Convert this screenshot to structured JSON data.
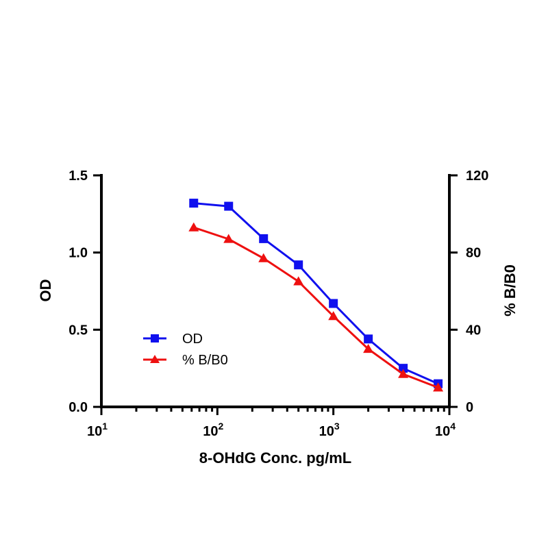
{
  "chart_data": {
    "type": "line",
    "x_scale": "log",
    "xlabel": "8-OHdG Conc. pg/mL",
    "xlim": [
      10,
      10000
    ],
    "x_ticks": [
      10,
      100,
      1000,
      10000
    ],
    "x_tick_labels": [
      {
        "base": "10",
        "exp": "1"
      },
      {
        "base": "10",
        "exp": "2"
      },
      {
        "base": "10",
        "exp": "3"
      },
      {
        "base": "10",
        "exp": "4"
      }
    ],
    "y_left": {
      "label": "OD",
      "lim": [
        0,
        1.5
      ],
      "ticks": [
        0,
        0.5,
        1.0,
        1.5
      ],
      "tick_labels": [
        "0.0",
        "0.5",
        "1.0",
        "1.5"
      ]
    },
    "y_right": {
      "label": "% B/B0",
      "lim": [
        0,
        120
      ],
      "ticks": [
        0,
        40,
        80,
        120
      ],
      "tick_labels": [
        "0",
        "40",
        "80",
        "120"
      ]
    },
    "x": [
      62.5,
      125,
      250,
      500,
      1000,
      2000,
      4000,
      8000
    ],
    "series": [
      {
        "name": "OD",
        "axis": "left",
        "marker": "square",
        "color": "#1010ee",
        "values": [
          1.32,
          1.3,
          1.09,
          0.92,
          0.67,
          0.44,
          0.25,
          0.15
        ]
      },
      {
        "name": "% B/B0",
        "axis": "right",
        "marker": "triangle",
        "color": "#ee1010",
        "values": [
          93,
          87,
          77,
          65,
          47,
          30,
          17,
          10
        ]
      }
    ],
    "legend": {
      "position": "center-left",
      "items": [
        "OD",
        "% B/B0"
      ]
    },
    "grid": false
  }
}
